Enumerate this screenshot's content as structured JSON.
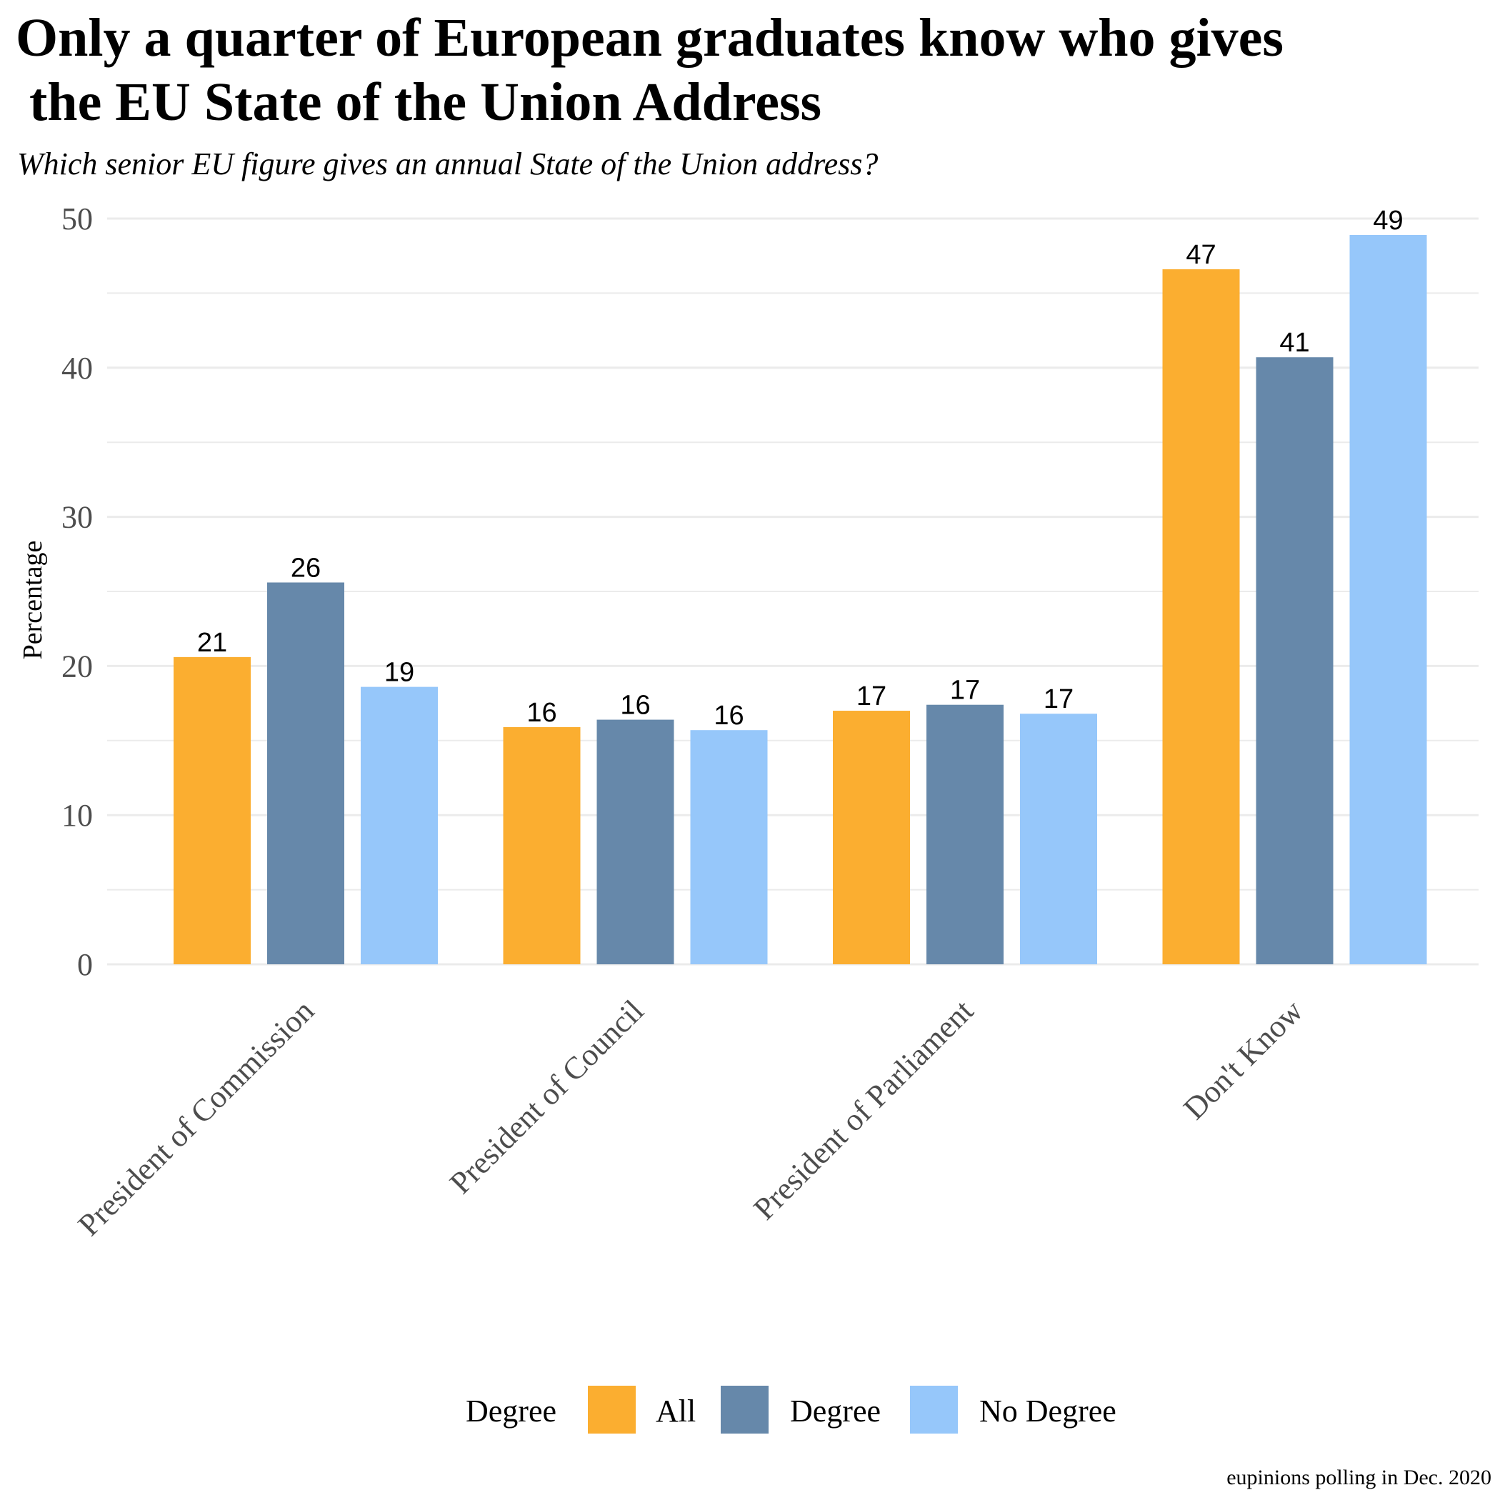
{
  "chart_data": {
    "type": "bar",
    "title_line1": "Only a quarter of European graduates know who gives",
    "title_line2": " the EU State of the Union Address",
    "subtitle": "Which senior EU figure gives an annual State of the Union address?",
    "ylabel": "Percentage",
    "xlabel": "",
    "ylim": [
      0,
      50
    ],
    "yticks": [
      0,
      10,
      20,
      30,
      40,
      50
    ],
    "grid": true,
    "legend_title": "Degree",
    "legend_position": "bottom",
    "caption": "eupinions polling in Dec. 2020",
    "categories": [
      "President of Commission",
      "President of Council",
      "President of Parliament",
      "Don't Know"
    ],
    "series": [
      {
        "name": "All",
        "color": "#FBAE30",
        "values": [
          20.6,
          15.9,
          17.0,
          46.6
        ],
        "labels": [
          "21",
          "16",
          "17",
          "47"
        ]
      },
      {
        "name": "Degree",
        "color": "#6688AA",
        "values": [
          25.6,
          16.4,
          17.4,
          40.7
        ],
        "labels": [
          "26",
          "16",
          "17",
          "41"
        ]
      },
      {
        "name": "No Degree",
        "color": "#96C7FA",
        "values": [
          18.6,
          15.7,
          16.8,
          48.9
        ],
        "labels": [
          "19",
          "16",
          "17",
          "49"
        ]
      }
    ]
  }
}
